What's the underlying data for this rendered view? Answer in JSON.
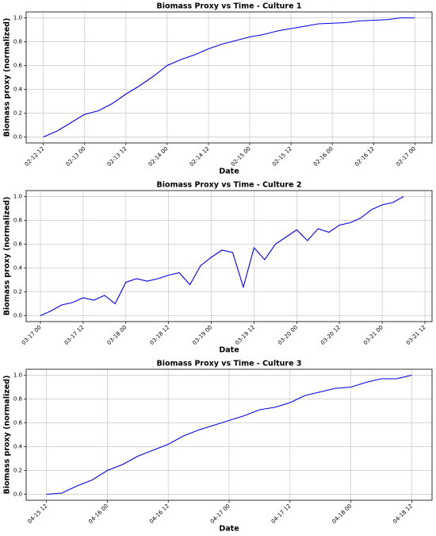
{
  "chart_data": [
    {
      "type": "line",
      "title": "Biomass Proxy vs Time - Culture 1",
      "x_label": "Date",
      "y_label": "Biomass proxy (normalized)",
      "color": "#0000ee",
      "grid": true,
      "x": [
        "02-12 12",
        "02-12 16",
        "02-12 20",
        "02-13 00",
        "02-13 04",
        "02-13 08",
        "02-13 12",
        "02-13 16",
        "02-13 20",
        "02-14 00",
        "02-14 04",
        "02-14 08",
        "02-14 12",
        "02-14 16",
        "02-14 20",
        "02-15 00",
        "02-15 04",
        "02-15 08",
        "02-15 12",
        "02-15 16",
        "02-15 20",
        "02-16 00",
        "02-16 04",
        "02-16 08",
        "02-16 12",
        "02-16 16",
        "02-16 20",
        "02-17 00"
      ],
      "values": [
        0,
        0.05,
        0.12,
        0.19,
        0.22,
        0.28,
        0.36,
        0.43,
        0.51,
        0.6,
        0.65,
        0.69,
        0.74,
        0.78,
        0.81,
        0.84,
        0.86,
        0.89,
        0.91,
        0.93,
        0.95,
        0.955,
        0.96,
        0.975,
        0.98,
        0.985,
        1.0,
        1.0
      ],
      "xlim": [
        "02-12 07",
        "02-17 05"
      ],
      "xticks": [
        "02-12 12",
        "02-13 00",
        "02-13 12",
        "02-14 00",
        "02-14 12",
        "02-15 00",
        "02-15 12",
        "02-16 00",
        "02-16 12",
        "02-17 00"
      ],
      "ylim": [
        -0.05,
        1.05
      ],
      "yticks": [
        {
          "value": 0,
          "label": "0.0"
        },
        0.2,
        0.4,
        0.6,
        0.8,
        {
          "value": 1,
          "label": "1.0"
        }
      ]
    },
    {
      "type": "line",
      "title": "Biomass Proxy vs Time - Culture 2",
      "x_label": "Date",
      "y_label": "Biomass proxy (normalized)",
      "color": "#0000ee",
      "grid": true,
      "x": [
        "03-17 00",
        "03-17 03",
        "03-17 06",
        "03-17 09",
        "03-17 12",
        "03-17 15",
        "03-17 18",
        "03-17 21",
        "03-18 00",
        "03-18 03",
        "03-18 06",
        "03-18 09",
        "03-18 12",
        "03-18 15",
        "03-18 18",
        "03-18 21",
        "03-19 00",
        "03-19 03",
        "03-19 06",
        "03-19 09",
        "03-19 12",
        "03-19 15",
        "03-19 18",
        "03-19 21",
        "03-20 00",
        "03-20 03",
        "03-20 06",
        "03-20 09",
        "03-20 12",
        "03-20 15",
        "03-20 18",
        "03-20 21",
        "03-21 00",
        "03-21 03",
        "03-21 06"
      ],
      "values": [
        0,
        0.04,
        0.09,
        0.11,
        0.15,
        0.13,
        0.17,
        0.1,
        0.28,
        0.31,
        0.29,
        0.31,
        0.34,
        0.36,
        0.26,
        0.42,
        0.49,
        0.55,
        0.53,
        0.24,
        0.57,
        0.47,
        0.6,
        0.66,
        0.72,
        0.63,
        0.73,
        0.7,
        0.76,
        0.78,
        0.82,
        0.89,
        0.93,
        0.95,
        1.0
      ],
      "xlim": [
        "03-16 20",
        "03-21 14"
      ],
      "xticks": [
        "03-17 00",
        "03-17 12",
        "03-18 00",
        "03-18 12",
        "03-19 00",
        "03-19 12",
        "03-20 00",
        "03-20 12",
        "03-21 00",
        "03-21 12"
      ],
      "ylim": [
        -0.05,
        1.05
      ],
      "yticks": [
        {
          "value": 0,
          "label": "0.0"
        },
        0.2,
        0.4,
        0.6,
        0.8,
        {
          "value": 1,
          "label": "1.0"
        }
      ]
    },
    {
      "type": "line",
      "title": "Biomass Proxy vs Time - Culture 3",
      "x_label": "Date",
      "y_label": "Biomass proxy (normalized)",
      "color": "#0000ee",
      "grid": true,
      "x": [
        "04-15 12",
        "04-15 15",
        "04-15 18",
        "04-15 21",
        "04-16 00",
        "04-16 03",
        "04-16 06",
        "04-16 09",
        "04-16 12",
        "04-16 15",
        "04-16 18",
        "04-16 21",
        "04-17 00",
        "04-17 03",
        "04-17 06",
        "04-17 09",
        "04-17 12",
        "04-17 15",
        "04-17 18",
        "04-17 21",
        "04-18 00",
        "04-18 03",
        "04-18 06",
        "04-18 09",
        "04-18 12"
      ],
      "values": [
        0,
        0.01,
        0.07,
        0.12,
        0.2,
        0.25,
        0.32,
        0.37,
        0.42,
        0.49,
        0.54,
        0.58,
        0.62,
        0.66,
        0.71,
        0.73,
        0.77,
        0.83,
        0.86,
        0.89,
        0.9,
        0.94,
        0.97,
        0.97,
        1.0
      ],
      "xlim": [
        "04-15 08",
        "04-18 16"
      ],
      "xticks": [
        "04-15 12",
        "04-16 00",
        "04-16 12",
        "04-17 00",
        "04-17 12",
        "04-18 00",
        "04-18 12"
      ],
      "ylim": [
        -0.05,
        1.05
      ],
      "yticks": [
        {
          "value": 0,
          "label": "0.0"
        },
        0.2,
        0.4,
        0.6,
        0.8,
        {
          "value": 1,
          "label": "1.0"
        }
      ]
    }
  ]
}
